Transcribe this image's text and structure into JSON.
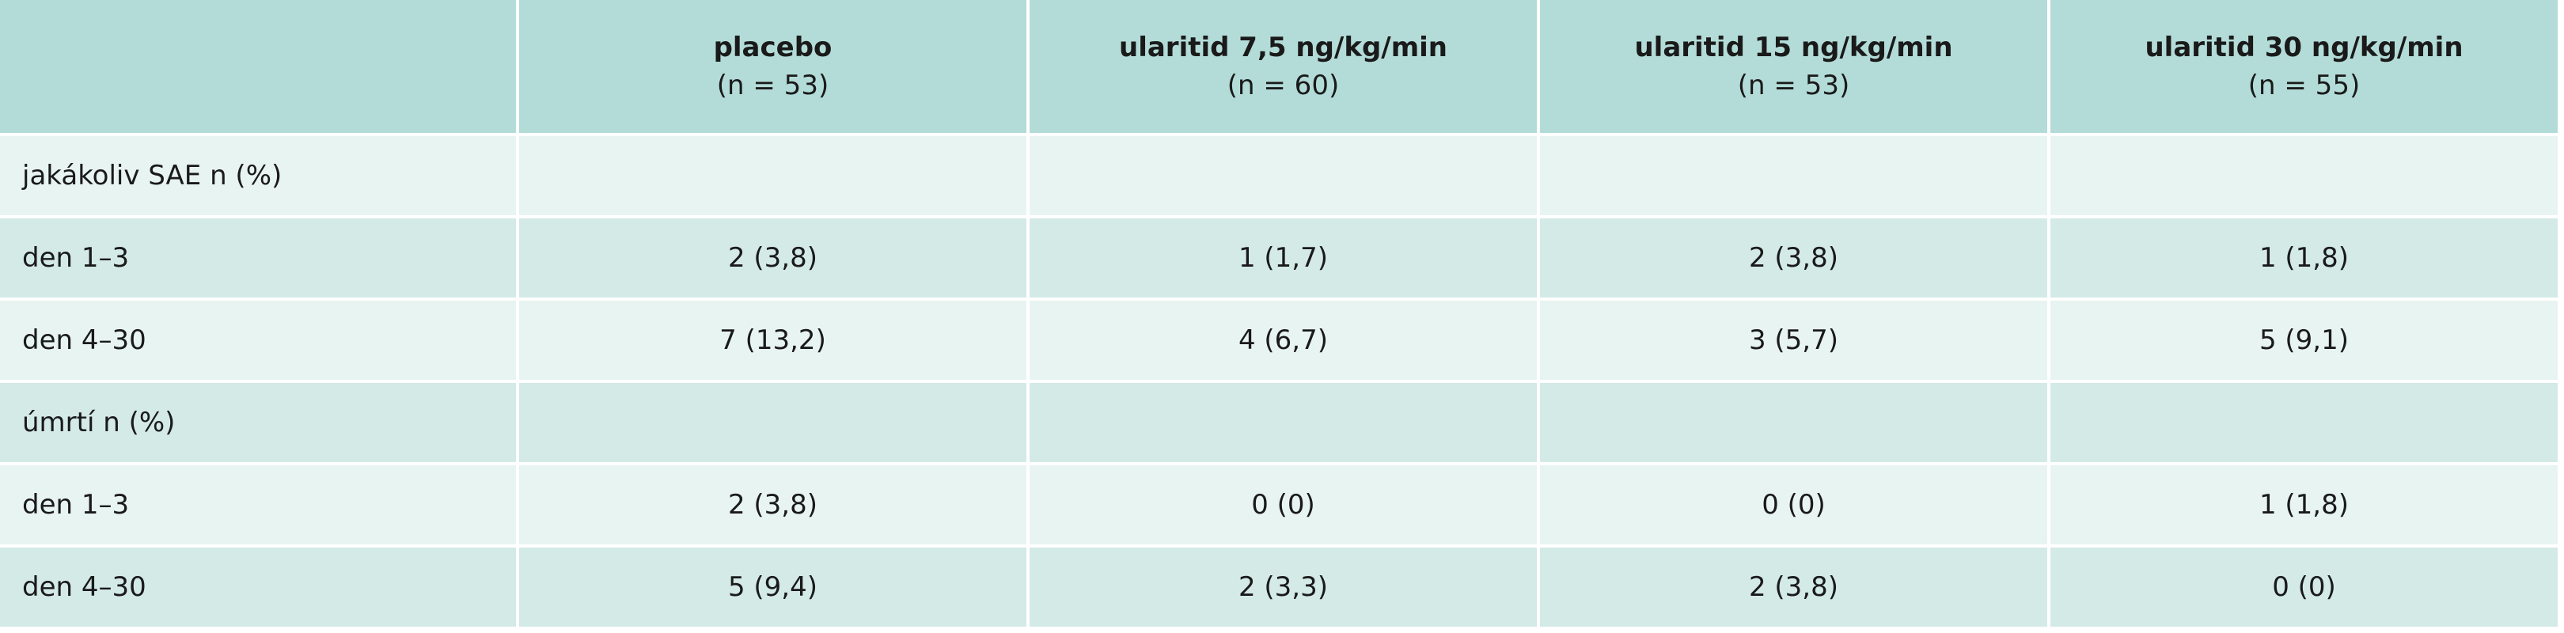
{
  "table": {
    "columns": [
      {
        "name": "placebo",
        "n": "(n = 53)"
      },
      {
        "name": "ularitid 7,5 ng/kg/min",
        "n": "(n = 60)"
      },
      {
        "name": "ularitid 15 ng/kg/min",
        "n": "(n = 53)"
      },
      {
        "name": "ularitid 30 ng/kg/min",
        "n": "(n = 55)"
      }
    ],
    "rows": [
      {
        "label": "jakákoliv SAE n (%)"
      },
      {
        "label": "den 1–3",
        "cells": [
          "2 (3,8)",
          "1 (1,7)",
          "2 (3,8)",
          "1 (1,8)"
        ]
      },
      {
        "label": "den 4–30",
        "cells": [
          "7 (13,2)",
          "4 (6,7)",
          "3 (5,7)",
          "5 (9,1)"
        ]
      },
      {
        "label": "úmrtí n (%)"
      },
      {
        "label": "den 1–3",
        "cells": [
          "2 (3,8)",
          "0 (0)",
          "0 (0)",
          "1 (1,8)"
        ]
      },
      {
        "label": "den 4–30",
        "cells": [
          "5 (9,4)",
          "2 (3,3)",
          "2 (3,8)",
          "0 (0)"
        ]
      }
    ]
  }
}
